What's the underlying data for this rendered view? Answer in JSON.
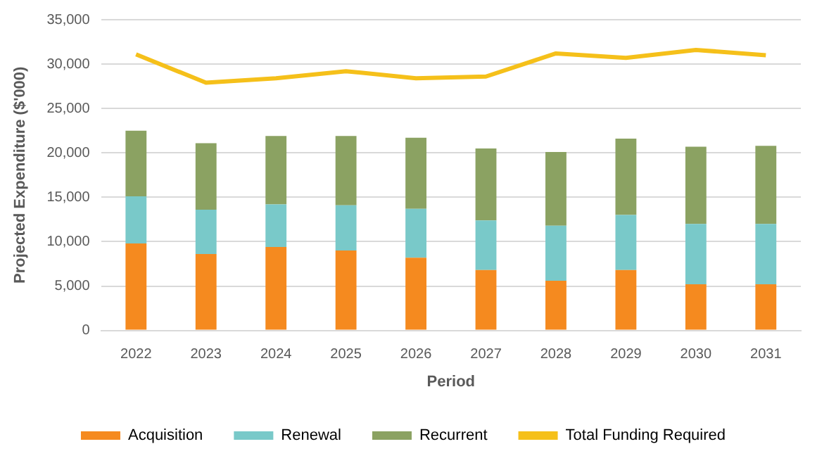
{
  "chart_data": {
    "type": "bar",
    "stacked": true,
    "xlabel": "Period",
    "ylabel": "Projected Expenditure ($'000)",
    "categories": [
      "2022",
      "2023",
      "2024",
      "2025",
      "2026",
      "2027",
      "2028",
      "2029",
      "2030",
      "2031"
    ],
    "series": [
      {
        "name": "Acquisition",
        "color": "#f58a1f",
        "values": [
          9800,
          8600,
          9400,
          9000,
          8200,
          6800,
          5600,
          6800,
          5200,
          5200
        ]
      },
      {
        "name": "Renewal",
        "color": "#79c9c9",
        "values": [
          5300,
          5000,
          4800,
          5100,
          5500,
          5600,
          6200,
          6200,
          6800,
          6800
        ]
      },
      {
        "name": "Recurrent",
        "color": "#8ba262",
        "values": [
          7400,
          7500,
          7700,
          7800,
          8000,
          8100,
          8300,
          8600,
          8700,
          8800
        ]
      },
      {
        "name": "Total Funding Required",
        "type": "line",
        "color": "#f5c01a",
        "values": [
          31100,
          27900,
          28400,
          29200,
          28400,
          28600,
          31200,
          30700,
          31600,
          31000
        ]
      }
    ],
    "ylim": [
      0,
      35000
    ],
    "yticks": [
      0,
      {
        "value": 5000,
        "label": "5,000"
      },
      {
        "value": 10000,
        "label": "10,000"
      },
      {
        "value": 15000,
        "label": "15,000"
      },
      {
        "value": 20000,
        "label": "20,000"
      },
      {
        "value": 25000,
        "label": "25,000"
      },
      {
        "value": 30000,
        "label": "30,000"
      },
      {
        "value": 35000,
        "label": "35,000"
      }
    ],
    "grid": "y",
    "legend": "bottom",
    "marker": "none"
  }
}
